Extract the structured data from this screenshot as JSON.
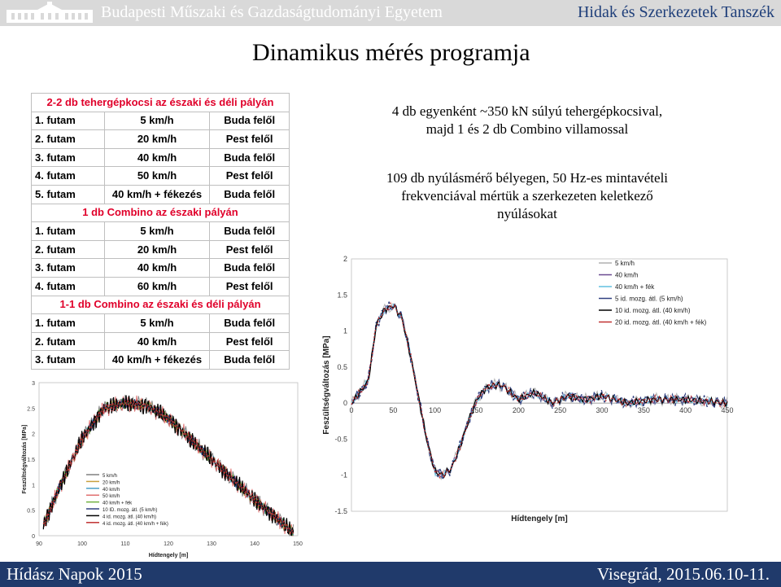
{
  "header": {
    "university": "Budapesti Műszaki és Gazdaságtudományi Egyetem",
    "department": "Hidak és Szerkezetek Tanszék"
  },
  "title": "Dinamikus mérés programja",
  "table": {
    "sections": [
      {
        "heading": "2-2 db tehergépkocsi az északi és déli pályán",
        "rows": [
          [
            "1. futam",
            "5 km/h",
            "Buda felől"
          ],
          [
            "2. futam",
            "20 km/h",
            "Pest felől"
          ],
          [
            "3. futam",
            "40 km/h",
            "Buda felől"
          ],
          [
            "4. futam",
            "50 km/h",
            "Pest felől"
          ],
          [
            "5. futam",
            "40 km/h + fékezés",
            "Buda felől"
          ]
        ]
      },
      {
        "heading": "1 db Combino az északi pályán",
        "rows": [
          [
            "1. futam",
            "5 km/h",
            "Buda felől"
          ],
          [
            "2. futam",
            "20 km/h",
            "Pest felől"
          ],
          [
            "3. futam",
            "40 km/h",
            "Buda felől"
          ],
          [
            "4. futam",
            "60 km/h",
            "Pest felől"
          ]
        ]
      },
      {
        "heading": "1-1 db Combino az északi és déli pályán",
        "rows": [
          [
            "1. futam",
            "5 km/h",
            "Buda felől"
          ],
          [
            "2. futam",
            "40 km/h",
            "Pest felől"
          ],
          [
            "3. futam",
            "40 km/h + fékezés",
            "Buda felől"
          ]
        ]
      }
    ]
  },
  "description": {
    "line1": "4 db egyenként ~350 kN súlyú tehergépkocsival,",
    "line2": "majd 1 és 2 db Combino villamossal",
    "line3": "109 db nyúlásmérő bélyegen, 50 Hz-es mintavételi",
    "line4": "frekvenciával mértük a szerkezeten keletkező",
    "line5": "nyúlásokat"
  },
  "chart_data": [
    {
      "type": "line",
      "xlabel": "Hídtengely [m]",
      "ylabel": "Feszültségváltozás [MPa]",
      "xlim": [
        90,
        150
      ],
      "ylim": [
        0,
        3
      ],
      "x_ticks": [
        90,
        100,
        110,
        120,
        130,
        140,
        150
      ],
      "y_ticks": [
        0,
        0.5,
        1,
        1.5,
        2,
        2.5,
        3
      ],
      "legend": [
        "5 km/h",
        "20 km/h",
        "40 km/h",
        "50 km/h",
        "40 km/h + fék",
        "10 ID. mozg. átl. (5 km/h)",
        "4 id. mozg. átl. (40 km/h)",
        "4 id. mozg. átl. (40 km/h + fék)"
      ],
      "series_x": [
        91,
        95,
        100,
        105,
        110,
        115,
        120,
        125,
        130,
        135,
        140,
        145,
        149
      ],
      "series_mean": [
        0.2,
        1.0,
        1.9,
        2.5,
        2.6,
        2.55,
        2.3,
        1.9,
        1.5,
        1.1,
        0.7,
        0.35,
        0.05
      ],
      "colors": [
        "#808080",
        "#c8a040",
        "#4aa0c8",
        "#e07070",
        "#70b040",
        "#304080",
        "#000000",
        "#c03030"
      ]
    },
    {
      "type": "line",
      "xlabel": "Hídtengely [m]",
      "ylabel": "Feszültségváltozás [MPa]",
      "xlim": [
        0,
        450
      ],
      "ylim": [
        -1.5,
        2
      ],
      "x_ticks": [
        0,
        50,
        100,
        150,
        200,
        250,
        300,
        350,
        400,
        450
      ],
      "y_ticks": [
        -1.5,
        -1,
        -0.5,
        0,
        0.5,
        1,
        1.5,
        2
      ],
      "legend": [
        "5 km/h",
        "40 km/h",
        "40 km/h + fék",
        "5 id. mozg. átl. (5 km/h)",
        "10 id. mozg. átl. (40 km/h)",
        "20 id. mozg. átl. (40 km/h + fék)"
      ],
      "series_x": [
        0,
        20,
        30,
        40,
        50,
        60,
        70,
        80,
        90,
        100,
        110,
        120,
        130,
        140,
        150,
        160,
        170,
        180,
        200,
        220,
        240,
        260,
        280,
        300,
        330,
        360,
        400,
        450
      ],
      "series_mean": [
        0,
        0.3,
        1.1,
        1.3,
        1.35,
        1.2,
        0.7,
        0.1,
        -0.5,
        -0.95,
        -1.0,
        -0.9,
        -0.6,
        -0.25,
        0.05,
        0.2,
        0.25,
        0.25,
        0.05,
        0.15,
        0.0,
        0.1,
        0.05,
        0.1,
        0.0,
        0.05,
        0.05,
        0.0
      ],
      "colors": [
        "#b0b0b0",
        "#6a4a90",
        "#60c0e0",
        "#304080",
        "#000000",
        "#c03030"
      ]
    }
  ],
  "footer": {
    "left": "Hídász Napok 2015",
    "right": "Visegrád, 2015.06.10-11."
  }
}
